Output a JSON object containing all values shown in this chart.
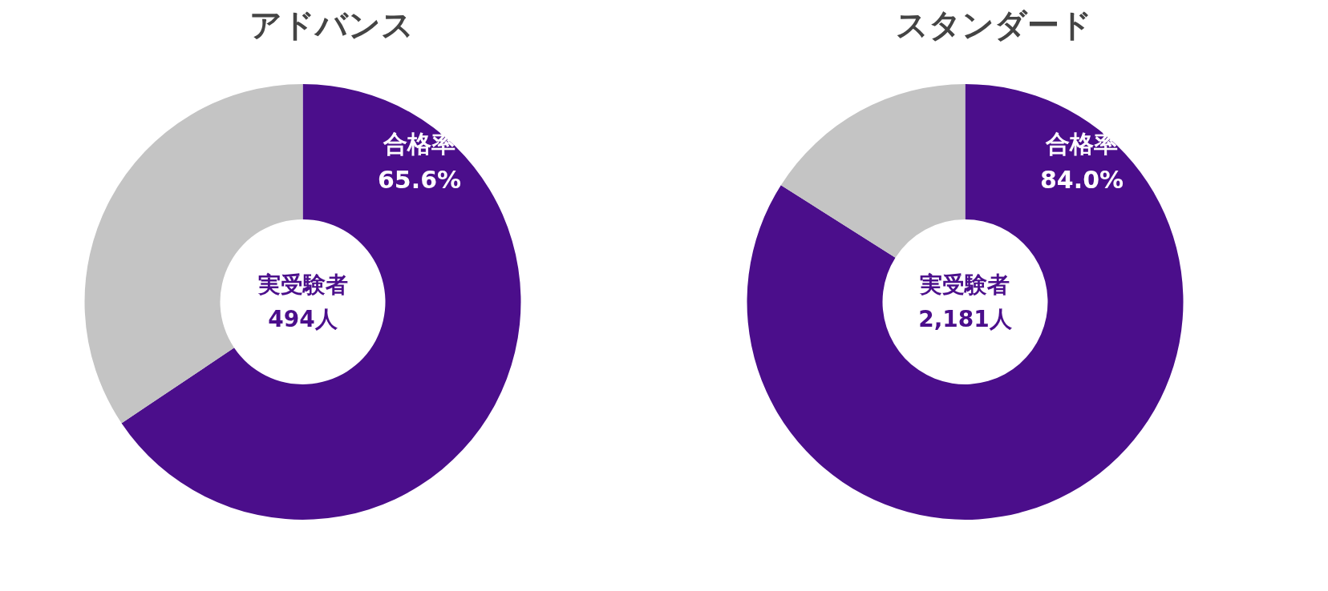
{
  "chart_data": [
    {
      "type": "donut",
      "title": "アドバンス",
      "categories": [
        "合格率",
        null
      ],
      "values": [
        65.6,
        34.4
      ],
      "colors": [
        "#4b0e8b",
        "#c4c4c4"
      ],
      "value_labels": [
        "65.6%",
        null
      ],
      "annotations": [
        "実受験者\n494人"
      ]
    },
    {
      "type": "donut",
      "title": "スタンダード",
      "categories": [
        "合格率",
        null
      ],
      "values": [
        84.0,
        16.0
      ],
      "colors": [
        "#4b0e8b",
        "#c4c4c4"
      ],
      "value_labels": [
        "84.0%",
        null
      ],
      "annotations": [
        "実受験者\n2,181人"
      ]
    }
  ]
}
